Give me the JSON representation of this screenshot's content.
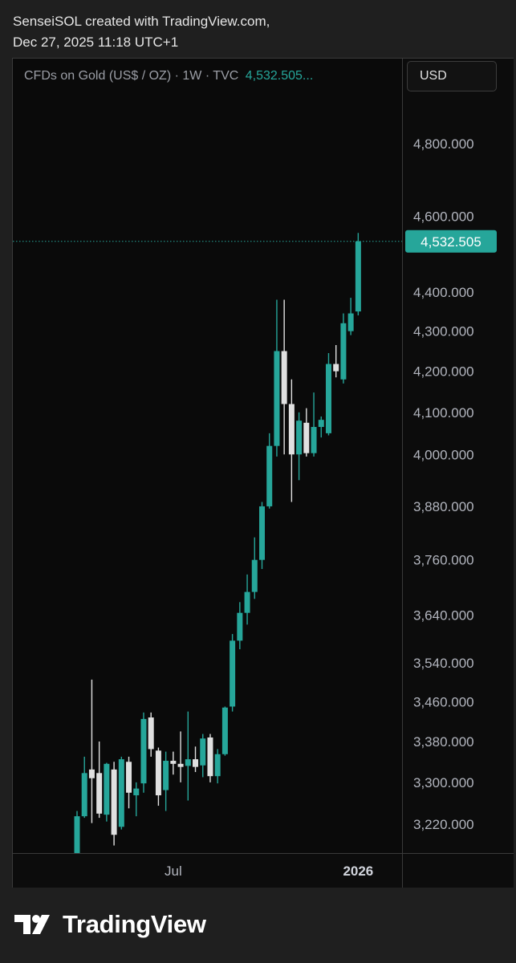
{
  "header": {
    "line1": "SenseiSOL created with TradingView.com,",
    "line2": "Dec 27, 2025 11:18 UTC+1"
  },
  "legend": {
    "symbol": "CFDs on Gold (US$ / OZ) · 1W · TVC",
    "price": "4,532.505..."
  },
  "currency_button": "USD",
  "brand": "TradingView",
  "colors": {
    "up": "#26a69a",
    "down": "#e0e0e0",
    "background": "#0a0a0a"
  },
  "chart_data": {
    "type": "candlestick",
    "interval": "1W",
    "symbol": "TVC Gold",
    "y_axis": {
      "ticks": [
        3220,
        3300,
        3380,
        3460,
        3540,
        3640,
        3760,
        3880,
        4000,
        4100,
        4200,
        4300,
        4400,
        4600,
        4800
      ],
      "tick_labels": [
        "3,220.000",
        "3,300.000",
        "3,380.000",
        "3,460.000",
        "3,540.000",
        "3,640.000",
        "3,760.000",
        "3,880.000",
        "4,000.000",
        "4,100.000",
        "4,200.000",
        "4,300.000",
        "4,400.000",
        "4,600.000",
        "4,800.000"
      ],
      "scale": "log"
    },
    "x_axis": {
      "labels": [
        {
          "text": "Jul",
          "index": 13
        },
        {
          "text": "2026",
          "index": 38
        }
      ]
    },
    "last_price": 4532.505,
    "last_price_label": "4,532.505",
    "candles": [
      {
        "o": 3145,
        "h": 3245,
        "l": 3145,
        "c": 3235
      },
      {
        "o": 3235,
        "h": 3350,
        "l": 3232,
        "c": 3318
      },
      {
        "o": 3325,
        "h": 3505,
        "l": 3222,
        "c": 3308
      },
      {
        "o": 3318,
        "h": 3380,
        "l": 3232,
        "c": 3240
      },
      {
        "o": 3238,
        "h": 3338,
        "l": 3225,
        "c": 3336
      },
      {
        "o": 3325,
        "h": 3340,
        "l": 3180,
        "c": 3200
      },
      {
        "o": 3215,
        "h": 3350,
        "l": 3210,
        "c": 3345
      },
      {
        "o": 3340,
        "h": 3350,
        "l": 3250,
        "c": 3280
      },
      {
        "o": 3275,
        "h": 3300,
        "l": 3235,
        "c": 3288
      },
      {
        "o": 3298,
        "h": 3438,
        "l": 3280,
        "c": 3425
      },
      {
        "o": 3428,
        "h": 3438,
        "l": 3350,
        "c": 3365
      },
      {
        "o": 3362,
        "h": 3368,
        "l": 3255,
        "c": 3275
      },
      {
        "o": 3285,
        "h": 3360,
        "l": 3245,
        "c": 3342
      },
      {
        "o": 3342,
        "h": 3360,
        "l": 3315,
        "c": 3336
      },
      {
        "o": 3336,
        "h": 3400,
        "l": 3300,
        "c": 3330
      },
      {
        "o": 3332,
        "h": 3440,
        "l": 3265,
        "c": 3345
      },
      {
        "o": 3345,
        "h": 3370,
        "l": 3320,
        "c": 3330
      },
      {
        "o": 3333,
        "h": 3395,
        "l": 3310,
        "c": 3386
      },
      {
        "o": 3388,
        "h": 3395,
        "l": 3300,
        "c": 3312
      },
      {
        "o": 3312,
        "h": 3365,
        "l": 3298,
        "c": 3355
      },
      {
        "o": 3355,
        "h": 3450,
        "l": 3352,
        "c": 3448
      },
      {
        "o": 3450,
        "h": 3600,
        "l": 3440,
        "c": 3586
      },
      {
        "o": 3586,
        "h": 3668,
        "l": 3568,
        "c": 3645
      },
      {
        "o": 3645,
        "h": 3728,
        "l": 3620,
        "c": 3690
      },
      {
        "o": 3690,
        "h": 3810,
        "l": 3675,
        "c": 3760
      },
      {
        "o": 3760,
        "h": 3890,
        "l": 3740,
        "c": 3880
      },
      {
        "o": 3880,
        "h": 4050,
        "l": 3875,
        "c": 4020
      },
      {
        "o": 4020,
        "h": 4380,
        "l": 3995,
        "c": 4250
      },
      {
        "o": 4250,
        "h": 4380,
        "l": 4000,
        "c": 4120
      },
      {
        "o": 4120,
        "h": 4180,
        "l": 3890,
        "c": 4000
      },
      {
        "o": 4000,
        "h": 4100,
        "l": 3940,
        "c": 4080
      },
      {
        "o": 4075,
        "h": 4110,
        "l": 3995,
        "c": 4003
      },
      {
        "o": 4003,
        "h": 4148,
        "l": 3995,
        "c": 4065
      },
      {
        "o": 4065,
        "h": 4090,
        "l": 4040,
        "c": 4082
      },
      {
        "o": 4050,
        "h": 4245,
        "l": 4045,
        "c": 4218
      },
      {
        "o": 4218,
        "h": 4265,
        "l": 4185,
        "c": 4200
      },
      {
        "o": 4180,
        "h": 4345,
        "l": 4170,
        "c": 4320
      },
      {
        "o": 4300,
        "h": 4385,
        "l": 4290,
        "c": 4345
      },
      {
        "o": 4350,
        "h": 4555,
        "l": 4340,
        "c": 4532.505
      }
    ]
  }
}
